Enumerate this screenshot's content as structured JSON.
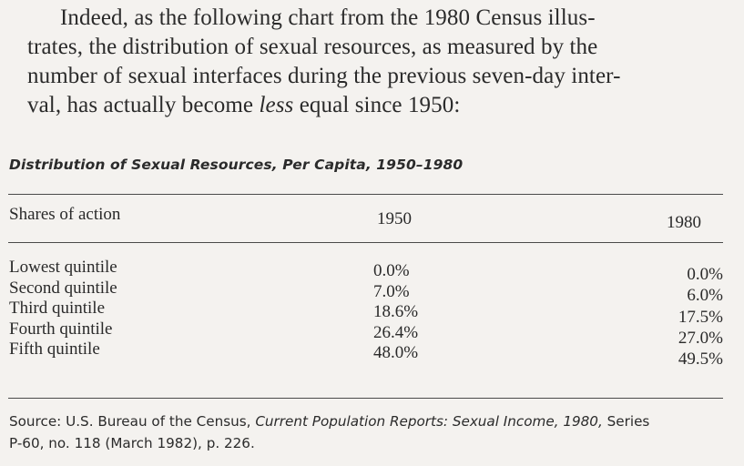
{
  "intro": {
    "line1": "Indeed, as the following chart from the 1980 Census illus-",
    "line2": "trates, the distribution of sexual resources, as measured by the",
    "line3": "number of sexual interfaces during the previous seven-day inter-",
    "line4_pre": "val, has actually become ",
    "line4_em": "less",
    "line4_post": " equal since 1950:"
  },
  "table": {
    "title": "Distribution of Sexual Resources, Per Capita, 1950–1980",
    "headers": [
      "Shares of action",
      "1950",
      "1980"
    ],
    "rows": [
      {
        "label": "Lowest quintile",
        "y1950": "0.0%",
        "y1980": "0.0%"
      },
      {
        "label": "Second quintile",
        "y1950": "7.0%",
        "y1980": "6.0%"
      },
      {
        "label": "Third quintile",
        "y1950": "18.6%",
        "y1980": "17.5%"
      },
      {
        "label": "Fourth quintile",
        "y1950": "26.4%",
        "y1980": "27.0%"
      },
      {
        "label": "Fifth quintile",
        "y1950": "48.0%",
        "y1980": "49.5%"
      }
    ]
  },
  "source": {
    "line1_pre": "Source: U.S. Bureau of the Census, ",
    "line1_em": "Current Population Reports: Sexual Income, 1980,",
    "line1_post": " Series",
    "line2": "P-60, no. 118 (March 1982), p. 226."
  }
}
